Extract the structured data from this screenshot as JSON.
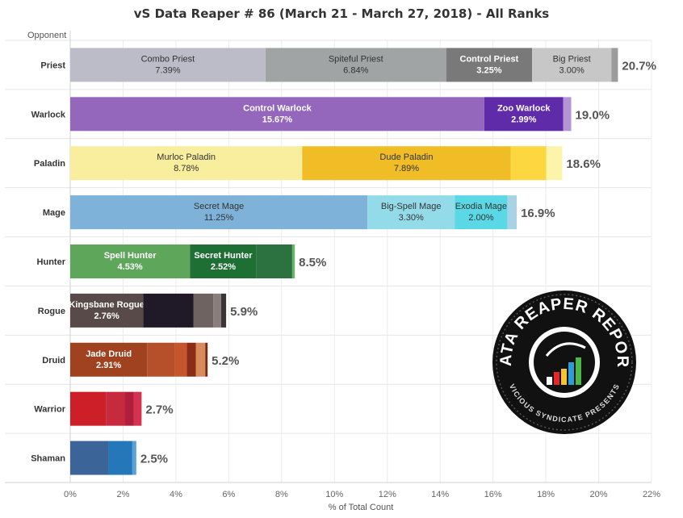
{
  "chart_data": {
    "type": "bar",
    "orientation": "horizontal",
    "stacked": true,
    "title": "vS Data Reaper # 86 (March 21 - March 27, 2018) - All Ranks",
    "row_header": "Opponent",
    "xlabel": "% of Total Count",
    "xlim": [
      0,
      22
    ],
    "x_ticks": [
      "0%",
      "2%",
      "4%",
      "6%",
      "8%",
      "10%",
      "12%",
      "14%",
      "16%",
      "18%",
      "20%",
      "22%"
    ],
    "grid": true,
    "categories": [
      {
        "name": "Priest",
        "total": 20.7,
        "total_label": "20.7%",
        "segments": [
          {
            "label": "Combo Priest",
            "value": 7.39,
            "value_label": "7.39%",
            "color": "#bcbcc9"
          },
          {
            "label": "Spiteful Priest",
            "value": 6.84,
            "value_label": "6.84%",
            "color": "#a1a4a4"
          },
          {
            "label": "Control Priest",
            "value": 3.25,
            "value_label": "3.25%",
            "color": "#797979"
          },
          {
            "label": "Big Priest",
            "value": 3.0,
            "value_label": "3.00%",
            "color": "#c7c7c7"
          },
          {
            "value": 0.25,
            "color": "#9c9c9c"
          }
        ]
      },
      {
        "name": "Warlock",
        "total": 19.0,
        "total_label": "19.0%",
        "segments": [
          {
            "label": "Control Warlock",
            "value": 15.67,
            "value_label": "15.67%",
            "color": "#9467bd"
          },
          {
            "label": "Zoo Warlock",
            "value": 2.99,
            "value_label": "2.99%",
            "color": "#5f2ba8"
          },
          {
            "value": 0.3,
            "color": "#b394d4"
          }
        ]
      },
      {
        "name": "Paladin",
        "total": 18.6,
        "total_label": "18.6%",
        "segments": [
          {
            "label": "Murloc Paladin",
            "value": 8.78,
            "value_label": "8.78%",
            "color": "#f9ee9e"
          },
          {
            "label": "Dude Paladin",
            "value": 7.89,
            "value_label": "7.89%",
            "color": "#f0bd27"
          },
          {
            "value": 1.35,
            "color": "#fdd740"
          },
          {
            "value": 0.6,
            "color": "#fbf4a9"
          }
        ]
      },
      {
        "name": "Mage",
        "total": 16.9,
        "total_label": "16.9%",
        "segments": [
          {
            "label": "Secret Mage",
            "value": 11.25,
            "value_label": "11.25%",
            "color": "#7fb2d9"
          },
          {
            "label": "Big-Spell Mage",
            "value": 3.3,
            "value_label": "3.30%",
            "color": "#94dbe9"
          },
          {
            "label": "Exodia Mage",
            "value": 2.0,
            "value_label": "2.00%",
            "color": "#5ad8e6"
          },
          {
            "value": 0.35,
            "color": "#a9d2e4"
          }
        ]
      },
      {
        "name": "Hunter",
        "total": 8.5,
        "total_label": "8.5%",
        "segments": [
          {
            "label": "Spell Hunter",
            "value": 4.53,
            "value_label": "4.53%",
            "color": "#5ea65a"
          },
          {
            "label": "Secret Hunter",
            "value": 2.52,
            "value_label": "2.52%",
            "color": "#1e6f34"
          },
          {
            "value": 1.35,
            "color": "#2b7240"
          },
          {
            "value": 0.1,
            "color": "#6cb36a"
          }
        ]
      },
      {
        "name": "Rogue",
        "total": 5.9,
        "total_label": "5.9%",
        "segments": [
          {
            "label": "Kingsbane Rogue",
            "value": 2.76,
            "value_label": "2.76%",
            "color": "#584a48"
          },
          {
            "value": 1.9,
            "color": "#201928"
          },
          {
            "value": 0.75,
            "color": "#6e6361"
          },
          {
            "value": 0.3,
            "color": "#8a7e7d"
          },
          {
            "value": 0.19,
            "color": "#3a3434"
          }
        ]
      },
      {
        "name": "Druid",
        "total": 5.2,
        "total_label": "5.2%",
        "segments": [
          {
            "label": "Jade Druid",
            "value": 2.91,
            "value_label": "2.91%",
            "color": "#a0421f"
          },
          {
            "value": 1.05,
            "color": "#b5502a"
          },
          {
            "value": 0.45,
            "color": "#c5562b"
          },
          {
            "value": 0.35,
            "color": "#8b2d14"
          },
          {
            "value": 0.35,
            "color": "#d98a5c"
          },
          {
            "value": 0.09,
            "color": "#7a2a12"
          }
        ]
      },
      {
        "name": "Warrior",
        "total": 2.7,
        "total_label": "2.7%",
        "segments": [
          {
            "value": 1.35,
            "color": "#cc1f27"
          },
          {
            "value": 0.7,
            "color": "#c62a3c"
          },
          {
            "value": 0.35,
            "color": "#b01e3a"
          },
          {
            "value": 0.3,
            "color": "#d33351"
          }
        ]
      },
      {
        "name": "Shaman",
        "total": 2.5,
        "total_label": "2.5%",
        "segments": [
          {
            "value": 1.45,
            "color": "#3b6599"
          },
          {
            "value": 0.9,
            "color": "#2478b9"
          },
          {
            "value": 0.15,
            "color": "#5aa1d8"
          }
        ]
      }
    ]
  },
  "logo": {
    "top_text": "DATA REAPER REPORT",
    "bottom_text": "VICIOUS SYNDICATE PRESENTS",
    "bar_colors": [
      "#ffffff",
      "#e8262a",
      "#f6c42b",
      "#2c9cd8",
      "#4ab848"
    ]
  }
}
